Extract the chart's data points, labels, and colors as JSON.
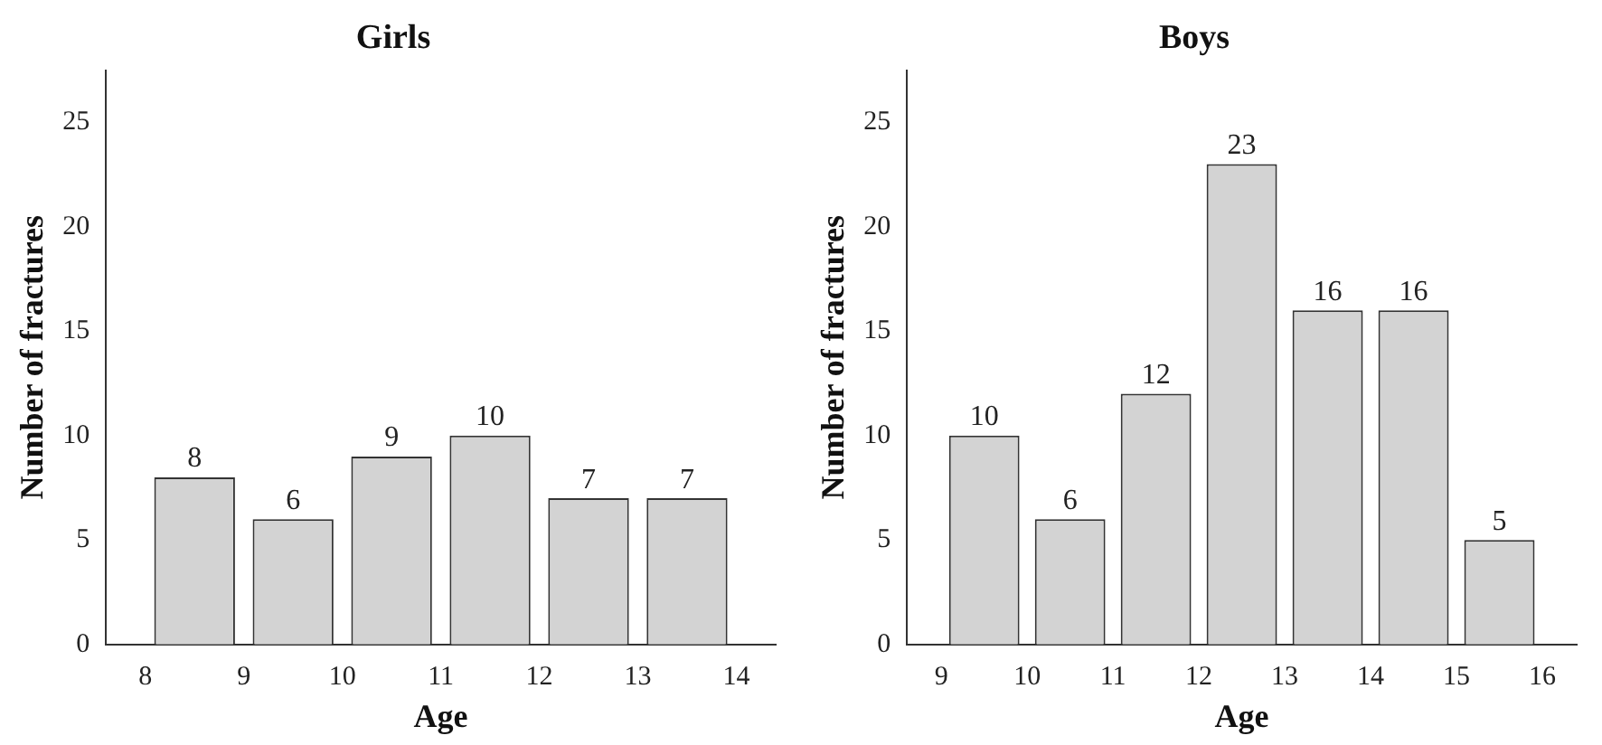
{
  "chart_data": [
    {
      "type": "histogram",
      "title": "Girls",
      "xlabel": "Age",
      "ylabel": "Number of fractures",
      "bins": [
        8,
        9,
        10,
        11,
        12,
        13,
        14
      ],
      "values": [
        8,
        6,
        9,
        10,
        7,
        7
      ],
      "color": "#d3d3d3",
      "xlim": [
        7.6,
        14.4
      ],
      "xticks": [
        8,
        9,
        10,
        11,
        12,
        13,
        14
      ],
      "ylim": [
        0,
        27.5
      ],
      "yticks": [
        0,
        5,
        10,
        15,
        20,
        25
      ],
      "data_labels": true
    },
    {
      "type": "histogram",
      "title": "Boys",
      "xlabel": "Age",
      "ylabel": "Number of fractures",
      "bins": [
        9,
        10,
        11,
        12,
        13,
        14,
        15,
        16
      ],
      "values": [
        10,
        6,
        12,
        23,
        16,
        16,
        5
      ],
      "color": "#d3d3d3",
      "xlim": [
        8.6,
        16.4
      ],
      "xticks": [
        9,
        10,
        11,
        12,
        13,
        14,
        15,
        16
      ],
      "ylim": [
        0,
        27.5
      ],
      "yticks": [
        0,
        5,
        10,
        15,
        20,
        25
      ],
      "data_labels": true
    }
  ]
}
